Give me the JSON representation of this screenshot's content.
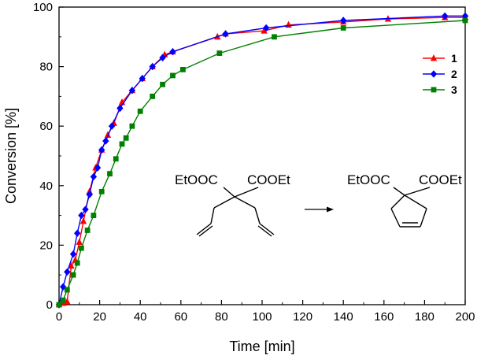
{
  "chart_data": {
    "type": "line",
    "title": "",
    "xlabel": "Time [min]",
    "ylabel": "Conversion [%]",
    "xlim": [
      0,
      200
    ],
    "ylim": [
      0,
      100
    ],
    "xticks": [
      0,
      20,
      40,
      60,
      80,
      100,
      120,
      140,
      160,
      180,
      200
    ],
    "yticks": [
      0,
      20,
      40,
      60,
      80,
      100
    ],
    "grid": false,
    "legend_position": "top-right",
    "series": [
      {
        "name": "1",
        "color": "#ff0000",
        "marker": "triangle",
        "x": [
          0,
          2,
          4,
          6,
          8,
          10,
          12,
          15,
          18,
          21,
          24,
          27,
          31,
          36,
          41,
          46,
          52,
          56,
          78,
          82,
          101,
          113,
          140,
          162,
          190,
          200
        ],
        "y": [
          0,
          0.5,
          1,
          13,
          15,
          21,
          28,
          38,
          46,
          52,
          57,
          61,
          68,
          72,
          76,
          80,
          84,
          85,
          90,
          91,
          92,
          94,
          95,
          96,
          96.5,
          96.5
        ]
      },
      {
        "name": "2",
        "color": "#0000ff",
        "marker": "diamond",
        "x": [
          0,
          2,
          4,
          7,
          9,
          11,
          13,
          15,
          17,
          19,
          21,
          23,
          26,
          30,
          36,
          41,
          46,
          51,
          56,
          82,
          102,
          140,
          190,
          200
        ],
        "y": [
          0,
          6,
          11,
          17,
          24,
          30,
          32,
          37,
          43,
          46,
          52,
          55,
          60,
          66,
          72,
          76,
          80,
          83,
          85,
          91,
          93,
          95.5,
          97,
          97
        ]
      },
      {
        "name": "3",
        "color": "#008000",
        "marker": "square",
        "x": [
          0,
          2,
          4,
          7,
          9,
          11,
          14,
          17,
          21,
          25,
          28,
          31,
          33,
          36,
          40,
          46,
          51,
          56,
          61,
          79,
          106,
          140,
          200
        ],
        "y": [
          0,
          1.5,
          5,
          10,
          14,
          19,
          25,
          30,
          38,
          44,
          49,
          54,
          56,
          60,
          65,
          70,
          74,
          77,
          79,
          84.5,
          90,
          93,
          95.5
        ]
      }
    ]
  },
  "scheme": {
    "reactant_left_group": "EtOOC",
    "reactant_right_group": "COOEt",
    "product_left_group": "EtOOC",
    "product_right_group": "COOEt"
  }
}
